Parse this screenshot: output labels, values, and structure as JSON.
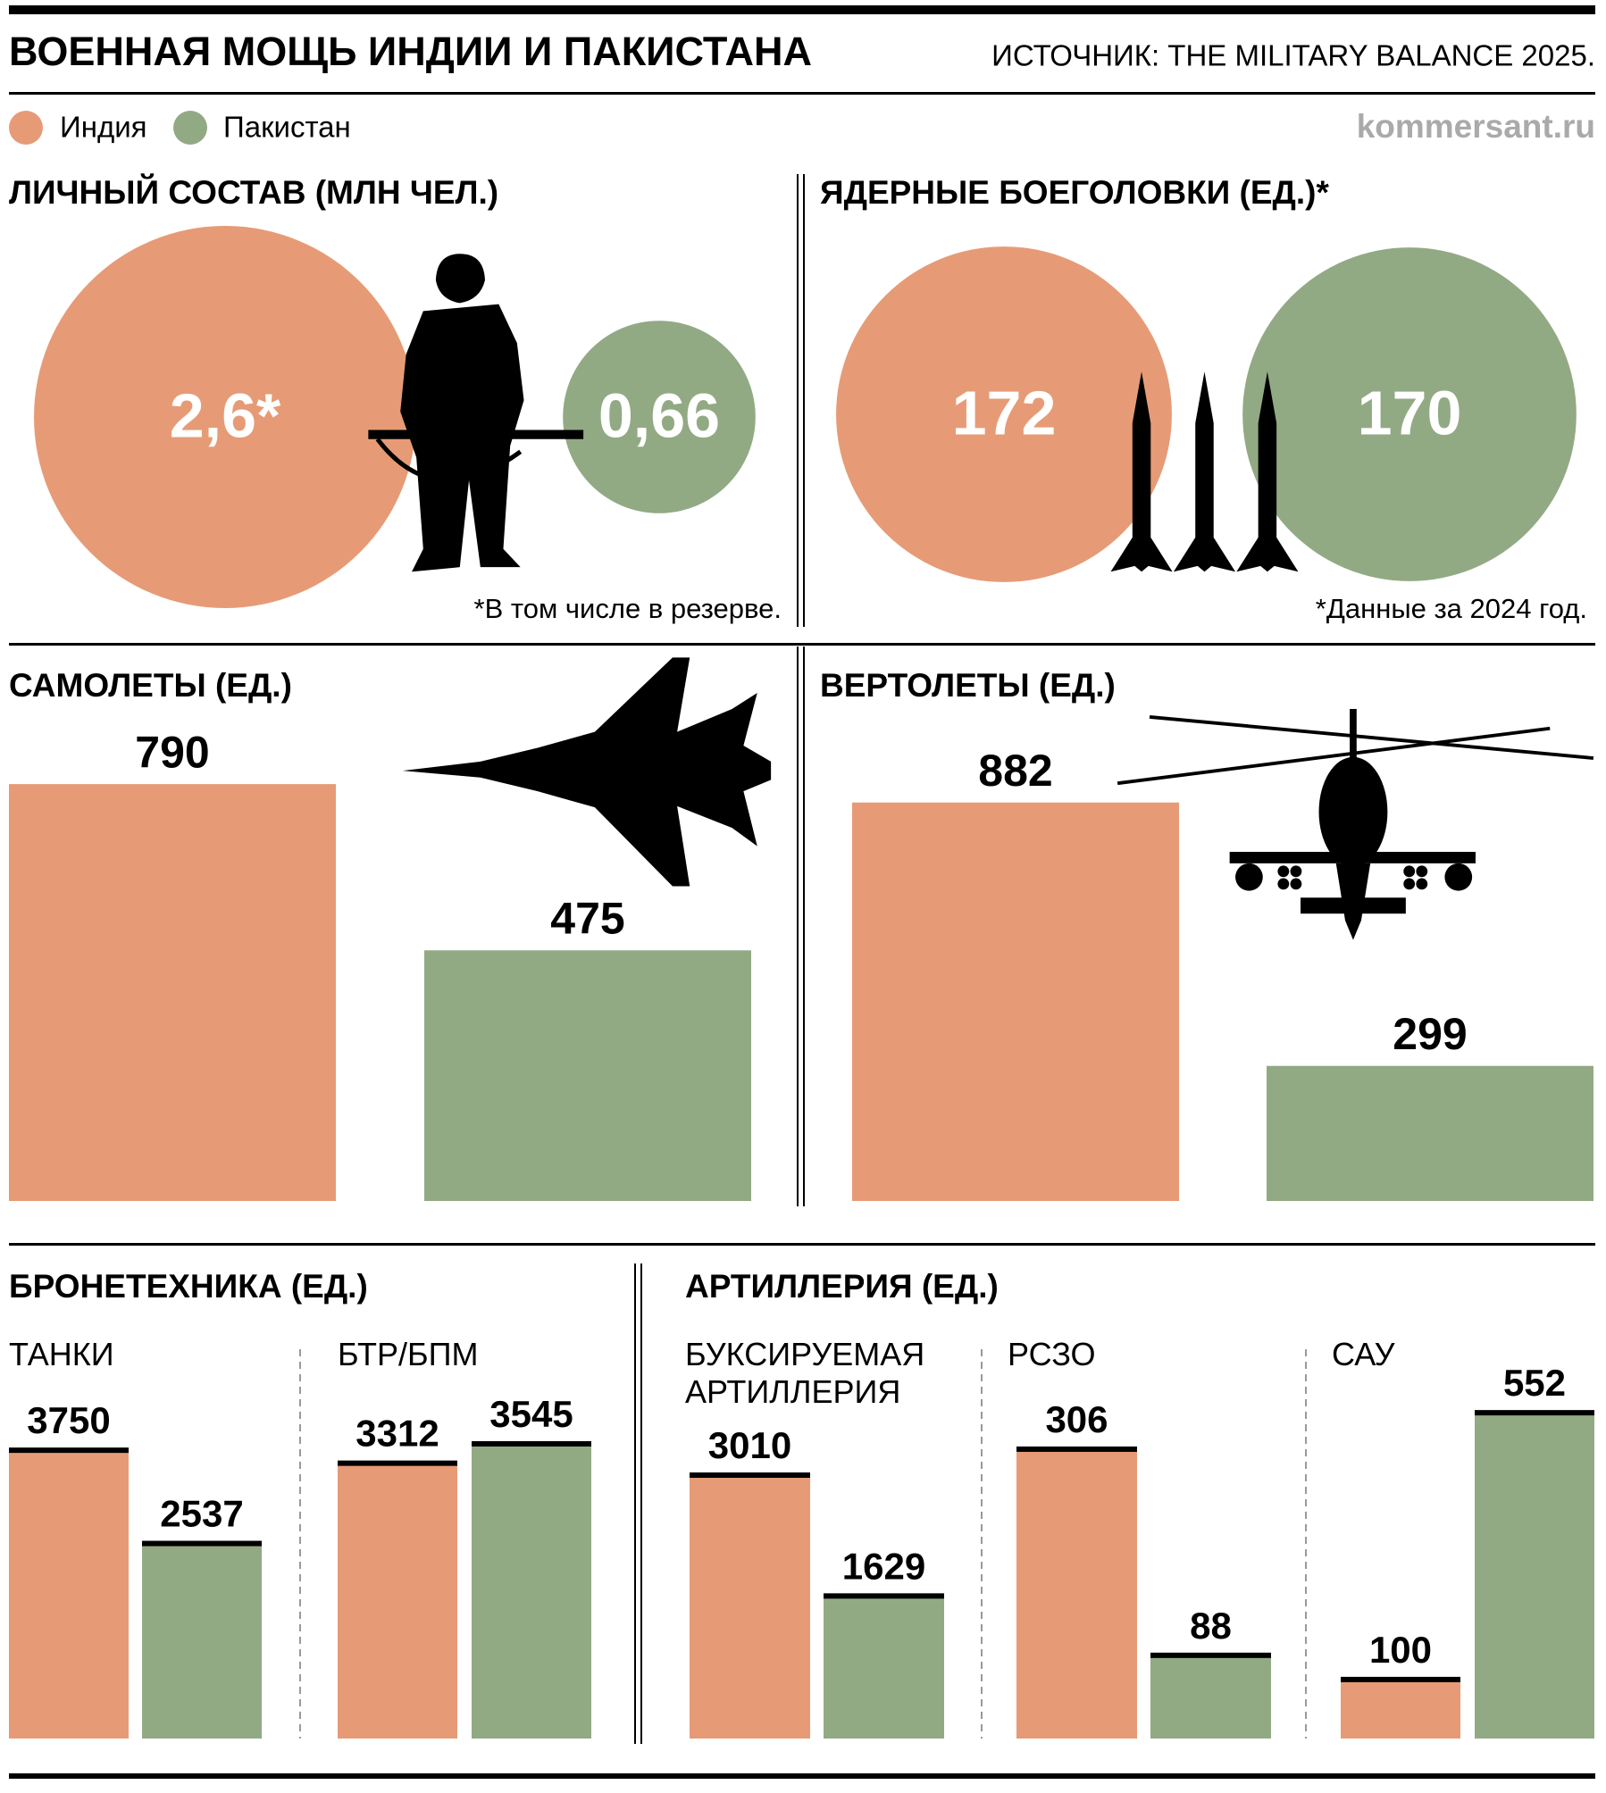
{
  "header": {
    "title": "ВОЕННАЯ МОЩЬ ИНДИИ И ПАКИСТАНА",
    "source": "ИСТОЧНИК: THE MILITARY BALANCE 2025.",
    "site": "kommersant.ru"
  },
  "legend": [
    {
      "name": "Индия",
      "color": "#e69b76"
    },
    {
      "name": "Пакистан",
      "color": "#92aa84"
    }
  ],
  "chart_data": [
    {
      "type": "bubble",
      "title": "ЛИЧНЫЙ СОСТАВ (МЛН ЧЕЛ.)",
      "values": [
        2.6,
        0.66
      ],
      "value_labels": [
        "2,6*",
        "0,66"
      ],
      "note": "*В том числе в резерве."
    },
    {
      "type": "bubble",
      "title": "ЯДЕРНЫЕ БОЕГОЛОВКИ (ЕД.)*",
      "values": [
        172,
        170
      ],
      "note": "*Данные за 2024 год."
    },
    {
      "type": "bar",
      "title": "САМОЛЕТЫ (ЕД.)",
      "values": [
        790,
        475
      ]
    },
    {
      "type": "bar",
      "title": "ВЕРТОЛЕТЫ (ЕД.)",
      "values": [
        882,
        299
      ]
    },
    {
      "type": "bar",
      "title": "БРОНЕТЕХНИКА (ЕД.)",
      "subtitle": "ТАНКИ",
      "values": [
        3750,
        2537
      ]
    },
    {
      "type": "bar",
      "subtitle": "БТР/БПМ",
      "values": [
        3312,
        3545
      ]
    },
    {
      "type": "bar",
      "title": "АРТИЛЛЕРИЯ (ЕД.)",
      "subtitle": "БУКСИРУЕМАЯ\nАРТИЛЛЕРИЯ",
      "values": [
        3010,
        1629
      ]
    },
    {
      "type": "bar",
      "subtitle": "РСЗО",
      "values": [
        306,
        88
      ]
    },
    {
      "type": "bar",
      "subtitle": "САУ",
      "values": [
        100,
        552
      ]
    }
  ]
}
